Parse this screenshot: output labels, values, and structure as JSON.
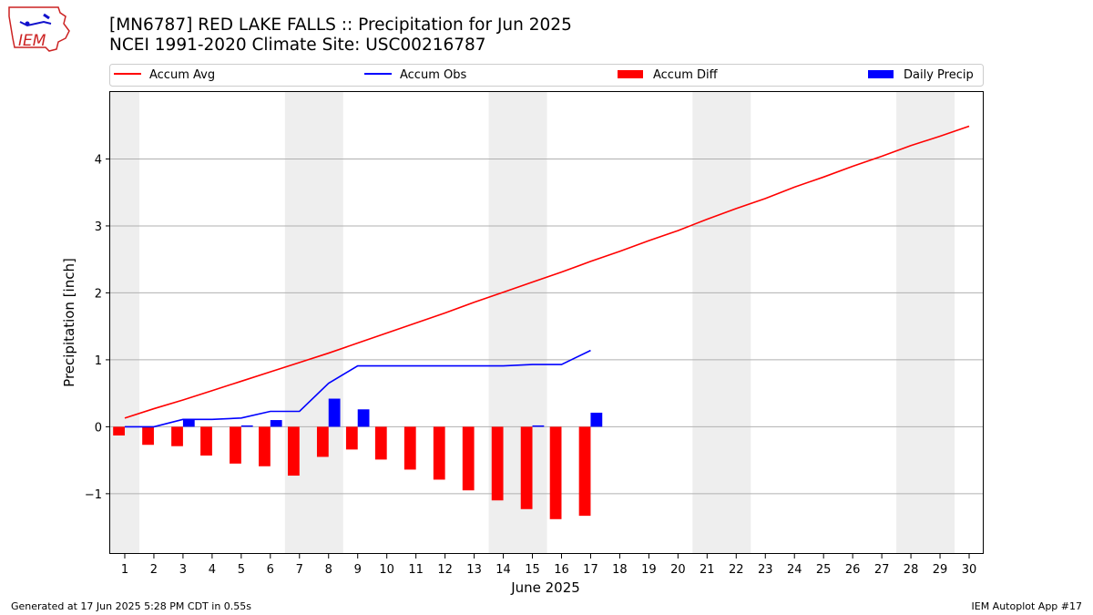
{
  "header": {
    "title_line1": "[MN6787] RED LAKE FALLS :: Precipitation for Jun 2025",
    "title_line2": "NCEI 1991-2020 Climate Site: USC00216787"
  },
  "logo": {
    "text": "IEM"
  },
  "footer": {
    "left": "Generated at 17 Jun 2025 5:28 PM CDT in 0.55s",
    "right": "IEM Autoplot App #17"
  },
  "colors": {
    "avg": "#ff0000",
    "obs": "#0000ff",
    "diff": "#ff0000",
    "daily": "#0000ff",
    "weekend": "#eeeeee",
    "grid": "#b0b0b0"
  },
  "chart_data": {
    "type": "bar",
    "xlabel": "June 2025",
    "ylabel": "Precipitation [inch]",
    "xlim": [
      0.5,
      30.5
    ],
    "ylim": [
      -1.9,
      5.0
    ],
    "x_ticks": [
      1,
      2,
      3,
      4,
      5,
      6,
      7,
      8,
      9,
      10,
      11,
      12,
      13,
      14,
      15,
      16,
      17,
      18,
      19,
      20,
      21,
      22,
      23,
      24,
      25,
      26,
      27,
      28,
      29,
      30
    ],
    "y_ticks": [
      -1,
      0,
      1,
      2,
      3,
      4
    ],
    "y_tick_labels": [
      "−1",
      "0",
      "1",
      "2",
      "3",
      "4"
    ],
    "grid": "y",
    "legend_position": "top",
    "weekend_bands": [
      [
        0.5,
        1.5
      ],
      [
        6.5,
        8.5
      ],
      [
        13.5,
        15.5
      ],
      [
        20.5,
        22.5
      ],
      [
        27.5,
        29.5
      ]
    ],
    "series": [
      {
        "name": "Accum Avg",
        "kind": "line",
        "color": "#ff0000",
        "x": [
          1,
          2,
          3,
          4,
          5,
          6,
          7,
          8,
          9,
          10,
          11,
          12,
          13,
          14,
          15,
          16,
          17,
          18,
          19,
          20,
          21,
          22,
          23,
          24,
          25,
          26,
          27,
          28,
          29,
          30
        ],
        "values": [
          0.13,
          0.27,
          0.4,
          0.54,
          0.68,
          0.82,
          0.96,
          1.1,
          1.25,
          1.4,
          1.55,
          1.7,
          1.86,
          2.01,
          2.16,
          2.31,
          2.47,
          2.62,
          2.78,
          2.93,
          3.1,
          3.26,
          3.41,
          3.58,
          3.73,
          3.89,
          4.04,
          4.2,
          4.34,
          4.49
        ]
      },
      {
        "name": "Accum Obs",
        "kind": "line",
        "color": "#0000ff",
        "x": [
          1,
          2,
          3,
          4,
          5,
          6,
          7,
          8,
          9,
          10,
          11,
          12,
          13,
          14,
          15,
          16,
          17
        ],
        "values": [
          0.0,
          0.0,
          0.11,
          0.11,
          0.13,
          0.23,
          0.23,
          0.65,
          0.91,
          0.91,
          0.91,
          0.91,
          0.91,
          0.91,
          0.93,
          0.93,
          1.14
        ]
      },
      {
        "name": "Accum Diff",
        "kind": "bar",
        "color": "#ff0000",
        "x": [
          1,
          2,
          3,
          4,
          5,
          6,
          7,
          8,
          9,
          10,
          11,
          12,
          13,
          14,
          15,
          16,
          17
        ],
        "values": [
          -0.13,
          -0.27,
          -0.29,
          -0.43,
          -0.55,
          -0.59,
          -0.73,
          -0.45,
          -0.34,
          -0.49,
          -0.64,
          -0.79,
          -0.95,
          -1.1,
          -1.23,
          -1.38,
          -1.33
        ]
      },
      {
        "name": "Daily Precip",
        "kind": "bar",
        "color": "#0000ff",
        "x": [
          1,
          2,
          3,
          4,
          5,
          6,
          7,
          8,
          9,
          10,
          11,
          12,
          13,
          14,
          15,
          16,
          17
        ],
        "values": [
          0,
          0,
          0.11,
          0,
          0.02,
          0.1,
          0,
          0.42,
          0.26,
          0,
          0,
          0,
          0,
          0,
          0.02,
          0,
          0.21
        ]
      }
    ]
  }
}
